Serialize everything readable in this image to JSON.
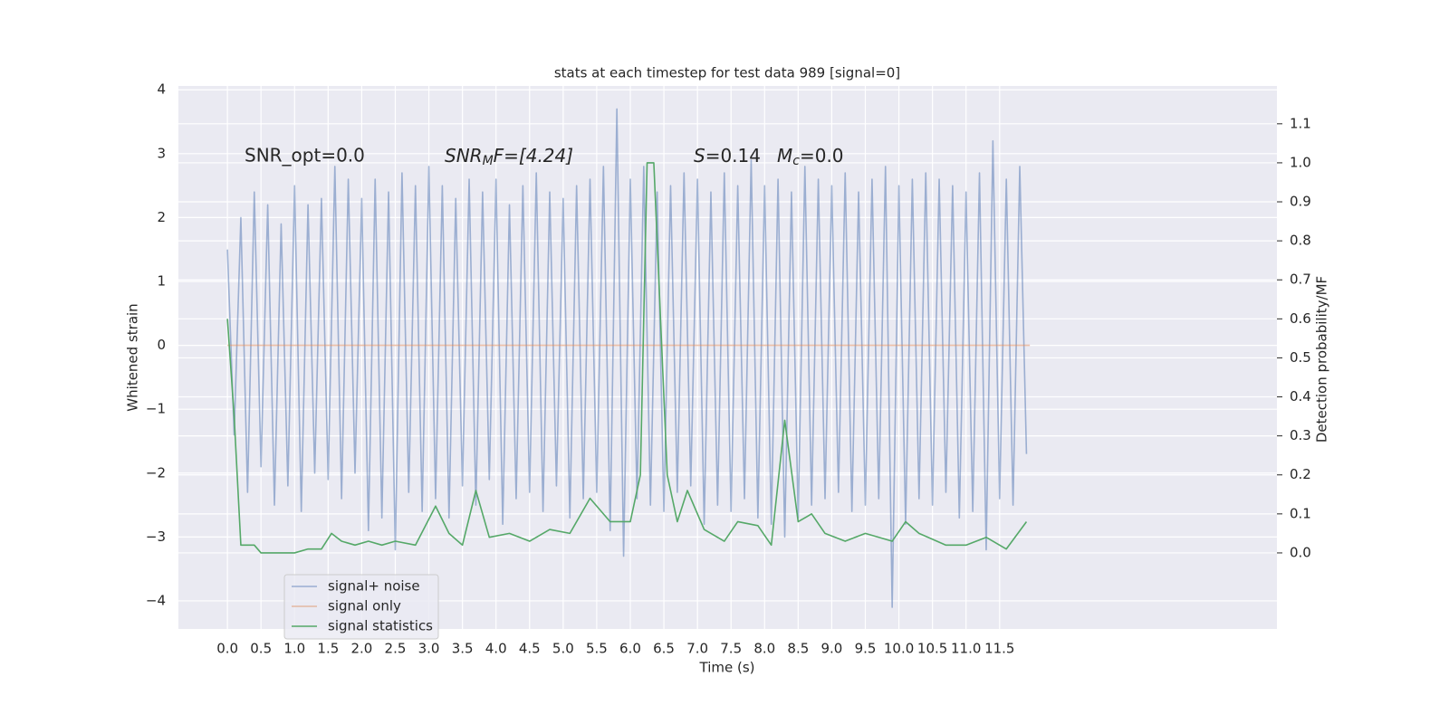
{
  "chart_data": {
    "type": "line",
    "title": "stats at each timestep for test data 989 [signal=0]",
    "xlabel": "Time (s)",
    "ylabel": "Whitened strain",
    "y2label": "Detection probability/MF",
    "annotations": {
      "snr_opt": "SNR_opt=0.0",
      "snr_mf": [
        "SNR",
        "M",
        "F=[4.24]"
      ],
      "s": [
        "S",
        "=0.14"
      ],
      "mc": [
        "M",
        "c",
        "=0.0"
      ]
    },
    "grid": true,
    "legend": "lower left",
    "xlim": [
      -0.73,
      15.63
    ],
    "xticks": [
      {
        "value": 0,
        "label": "0.0"
      },
      0.5,
      {
        "value": 1,
        "label": "1.0"
      },
      1.5,
      {
        "value": 2,
        "label": "2.0"
      },
      2.5,
      {
        "value": 3,
        "label": "3.0"
      },
      3.5,
      {
        "value": 4,
        "label": "4.0"
      },
      4.5,
      {
        "value": 5,
        "label": "5.0"
      },
      5.5,
      {
        "value": 6,
        "label": "6.0"
      },
      6.5,
      {
        "value": 7,
        "label": "7.0"
      },
      7.5,
      {
        "value": 8,
        "label": "8.0"
      },
      8.5,
      {
        "value": 9,
        "label": "9.0"
      },
      9.5,
      {
        "value": 10,
        "label": "10.0"
      },
      10.5,
      {
        "value": 11,
        "label": "11.0"
      },
      11.5
    ],
    "ylim": [
      -4.44,
      4.06
    ],
    "yticks": [
      {
        "value": -4,
        "label": "−4"
      },
      {
        "value": -3,
        "label": "−3"
      },
      {
        "value": -2,
        "label": "−2"
      },
      {
        "value": -1,
        "label": "−1"
      },
      0,
      1,
      2,
      3,
      4
    ],
    "y2lim": [
      -0.195,
      1.197
    ],
    "y2ticks": [
      {
        "value": 0,
        "label": "0.0"
      },
      0.1,
      0.2,
      0.3,
      0.4,
      0.5,
      0.6,
      0.7,
      0.8,
      0.9,
      {
        "value": 1,
        "label": "1.0"
      },
      1.1
    ],
    "series": [
      {
        "name": "signal+ noise",
        "color": "#4c72b0",
        "opacity": 0.5,
        "x": [
          0,
          0.1,
          0.2,
          0.3,
          0.4,
          0.5,
          0.6,
          0.7,
          0.8,
          0.9,
          1,
          1.1,
          1.2,
          1.3,
          1.4,
          1.5,
          1.6,
          1.7,
          1.8,
          1.9,
          2,
          2.1,
          2.2,
          2.3,
          2.4,
          2.5,
          2.6,
          2.7,
          2.8,
          2.9,
          3,
          3.1,
          3.2,
          3.3,
          3.4,
          3.5,
          3.6,
          3.7,
          3.8,
          3.9,
          4,
          4.1,
          4.2,
          4.3,
          4.4,
          4.5,
          4.6,
          4.7,
          4.8,
          4.9,
          5,
          5.1,
          5.2,
          5.3,
          5.4,
          5.5,
          5.6,
          5.7,
          5.8,
          5.9,
          6,
          6.1,
          6.2,
          6.3,
          6.4,
          6.5,
          6.6,
          6.7,
          6.8,
          6.9,
          7,
          7.1,
          7.2,
          7.3,
          7.4,
          7.5,
          7.6,
          7.7,
          7.8,
          7.9,
          8,
          8.1,
          8.2,
          8.3,
          8.4,
          8.5,
          8.6,
          8.7,
          8.8,
          8.9,
          9,
          9.1,
          9.2,
          9.3,
          9.4,
          9.5,
          9.6,
          9.7,
          9.8,
          9.9,
          10,
          10.1,
          10.2,
          10.3,
          10.4,
          10.5,
          10.6,
          10.7,
          10.8,
          10.9,
          11,
          11.1,
          11.2,
          11.3,
          11.4,
          11.5,
          11.6,
          11.7,
          11.8,
          11.9
        ],
        "values": [
          1.5,
          -1.4,
          2.0,
          -2.3,
          2.4,
          -1.9,
          2.2,
          -2.5,
          1.9,
          -2.2,
          2.5,
          -2.6,
          2.2,
          -2.0,
          2.3,
          -2.1,
          2.8,
          -2.4,
          2.6,
          -2.0,
          2.3,
          -2.9,
          2.6,
          -2.7,
          2.4,
          -3.2,
          2.7,
          -2.3,
          2.5,
          -2.6,
          2.8,
          -2.4,
          2.5,
          -2.7,
          2.3,
          -2.2,
          2.6,
          -2.5,
          2.4,
          -2.1,
          2.6,
          -2.8,
          2.2,
          -2.4,
          2.5,
          -2.3,
          2.7,
          -2.6,
          2.4,
          -2.2,
          2.3,
          -2.7,
          2.5,
          -2.4,
          2.6,
          -2.3,
          2.8,
          -2.9,
          3.7,
          -3.3,
          2.6,
          -2.4,
          2.8,
          -2.5,
          2.4,
          -2.6,
          2.5,
          -2.3,
          2.7,
          -2.2,
          2.6,
          -2.8,
          2.4,
          -2.5,
          2.7,
          -2.6,
          2.5,
          -2.4,
          2.9,
          -2.7,
          2.5,
          -2.8,
          2.6,
          -3.0,
          2.4,
          -2.7,
          2.8,
          -2.5,
          2.6,
          -2.4,
          2.5,
          -2.3,
          2.7,
          -2.6,
          2.4,
          -2.5,
          2.6,
          -2.4,
          2.8,
          -4.1,
          2.5,
          -2.8,
          2.6,
          -2.4,
          2.7,
          -2.5,
          2.6,
          -2.3,
          2.5,
          -2.7,
          2.4,
          -2.6,
          2.7,
          -3.2,
          3.2,
          -2.4,
          2.6,
          -2.5,
          2.8,
          -1.7
        ]
      },
      {
        "name": "signal only",
        "color": "#dd8452",
        "opacity": 0.5,
        "x": [
          0,
          11.95
        ],
        "values": [
          0,
          0
        ]
      },
      {
        "name": "signal statistics",
        "color": "#55a868",
        "axis": "y2",
        "x": [
          0,
          0.1,
          0.2,
          0.3,
          0.4,
          0.5,
          0.6,
          0.8,
          1,
          1.2,
          1.4,
          1.55,
          1.7,
          1.9,
          2.1,
          2.3,
          2.5,
          2.8,
          3.1,
          3.3,
          3.5,
          3.7,
          3.9,
          4.2,
          4.5,
          4.8,
          5.1,
          5.4,
          5.7,
          6,
          6.15,
          6.25,
          6.35,
          6.55,
          6.7,
          6.85,
          7.1,
          7.4,
          7.6,
          7.9,
          8.1,
          8.3,
          8.5,
          8.7,
          8.9,
          9.2,
          9.5,
          9.9,
          10.1,
          10.3,
          10.7,
          11,
          11.3,
          11.6,
          11.9
        ],
        "values": [
          0.6,
          0.35,
          0.02,
          0.02,
          0.02,
          0,
          0,
          0,
          0,
          0.01,
          0.01,
          0.05,
          0.03,
          0.02,
          0.03,
          0.02,
          0.03,
          0.02,
          0.12,
          0.05,
          0.02,
          0.16,
          0.04,
          0.05,
          0.03,
          0.06,
          0.05,
          0.14,
          0.08,
          0.08,
          0.2,
          1.0,
          1.0,
          0.2,
          0.08,
          0.16,
          0.06,
          0.03,
          0.08,
          0.07,
          0.02,
          0.34,
          0.08,
          0.1,
          0.05,
          0.03,
          0.05,
          0.03,
          0.08,
          0.05,
          0.02,
          0.02,
          0.04,
          0.01,
          0.08
        ]
      }
    ]
  }
}
